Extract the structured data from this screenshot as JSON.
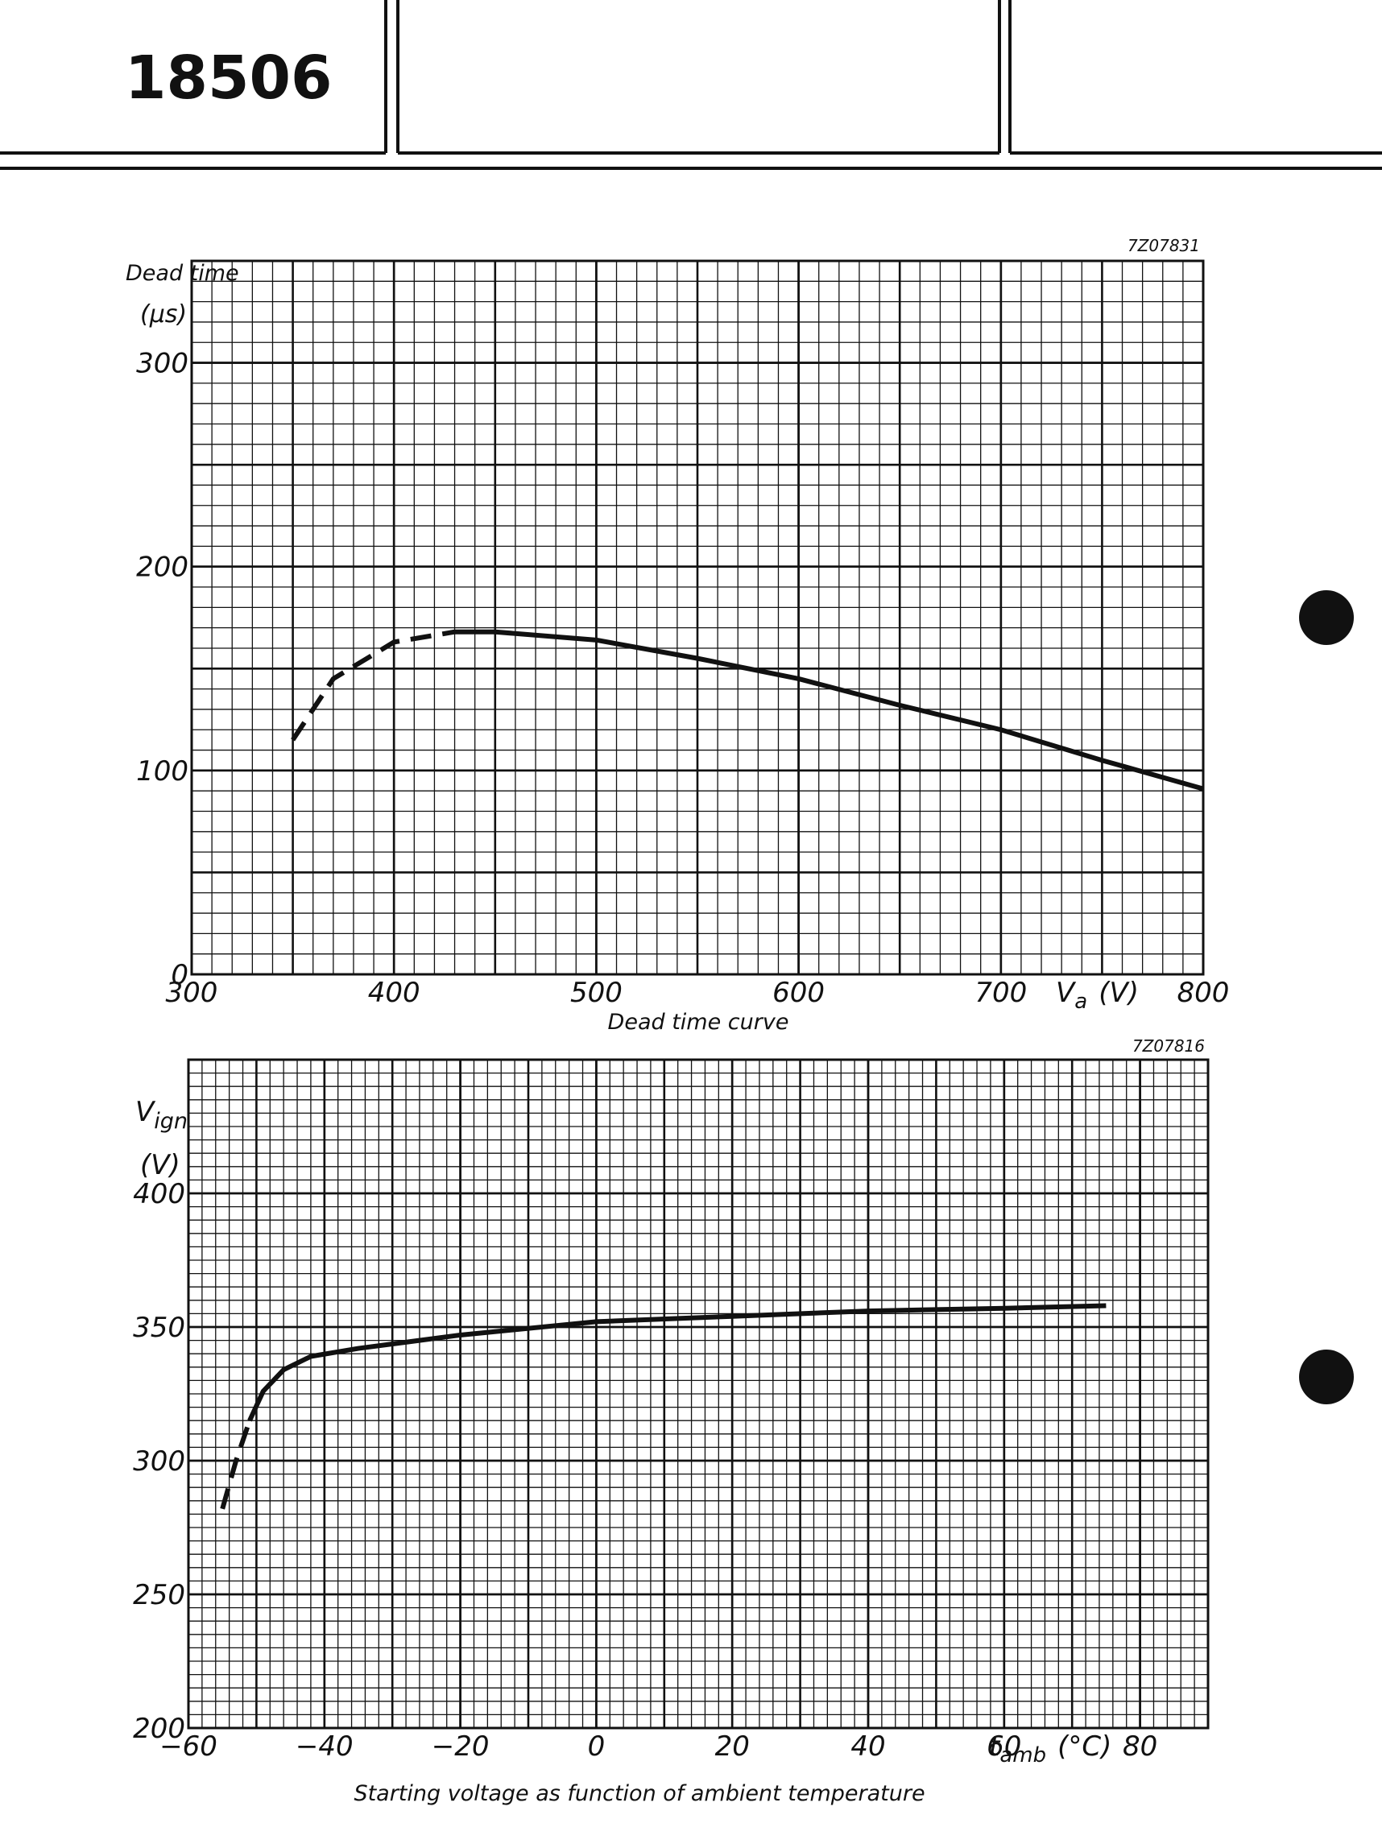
{
  "header": {
    "number": "18506"
  },
  "chart_data": [
    {
      "type": "line",
      "code": "7Z07831",
      "caption": "Dead time curve",
      "y_label": [
        "Dead time",
        "(μs)"
      ],
      "x_label": {
        "symbol": "V",
        "subscript": "a",
        "unit": "(V)"
      },
      "x": [
        350,
        370,
        400,
        430,
        450,
        500,
        550,
        600,
        650,
        700,
        750,
        800
      ],
      "series": [
        {
          "color": "#111111",
          "dash": true,
          "values": [
            115,
            145,
            163,
            168,
            null,
            null,
            null,
            null,
            null,
            null,
            null,
            null
          ]
        },
        {
          "color": "#111111",
          "dash": false,
          "values": [
            null,
            null,
            null,
            168,
            168,
            164,
            155,
            145,
            132,
            120,
            105,
            91
          ]
        }
      ],
      "xlim": [
        300,
        800
      ],
      "ylim": [
        0,
        350
      ],
      "xticks": [
        300,
        400,
        500,
        600,
        700,
        800
      ],
      "yticks": [
        0,
        100,
        200,
        300
      ],
      "grid": true,
      "minor_grid": {
        "x": 10,
        "y": 10
      },
      "major_grid": {
        "x": 50,
        "y": 50
      }
    },
    {
      "type": "line",
      "code": "7Z07816",
      "caption": "Starting voltage as function of ambient temperature",
      "y_label": [
        "Vign",
        "(V)"
      ],
      "y_label_parts": {
        "symbol": "V",
        "subscript": "ign"
      },
      "x_label": {
        "symbol": "t",
        "subscript": "amb",
        "unit": "(°C)"
      },
      "x": [
        -55,
        -53,
        -51,
        -49,
        -46,
        -42,
        -35,
        -20,
        0,
        20,
        40,
        60,
        75
      ],
      "series": [
        {
          "color": "#111111",
          "dash": true,
          "values": [
            282,
            300,
            315,
            null,
            null,
            null,
            null,
            null,
            null,
            null,
            null,
            null,
            null
          ]
        },
        {
          "color": "#111111",
          "dash": false,
          "values": [
            null,
            null,
            315,
            326,
            334,
            339,
            342,
            347,
            352,
            354,
            356,
            357,
            358
          ]
        }
      ],
      "xlim": [
        -60,
        90
      ],
      "ylim": [
        200,
        450
      ],
      "xticks": [
        {
          "value": -60,
          "label": "−60"
        },
        {
          "value": -40,
          "label": "−40"
        },
        {
          "value": -20,
          "label": "−20"
        },
        0,
        20,
        40,
        60,
        80
      ],
      "yticks": [
        200,
        250,
        300,
        350,
        400
      ],
      "grid": true,
      "minor_grid": {
        "x": 2,
        "y": 5
      },
      "major_grid": {
        "x": 10,
        "y": 50
      }
    }
  ]
}
